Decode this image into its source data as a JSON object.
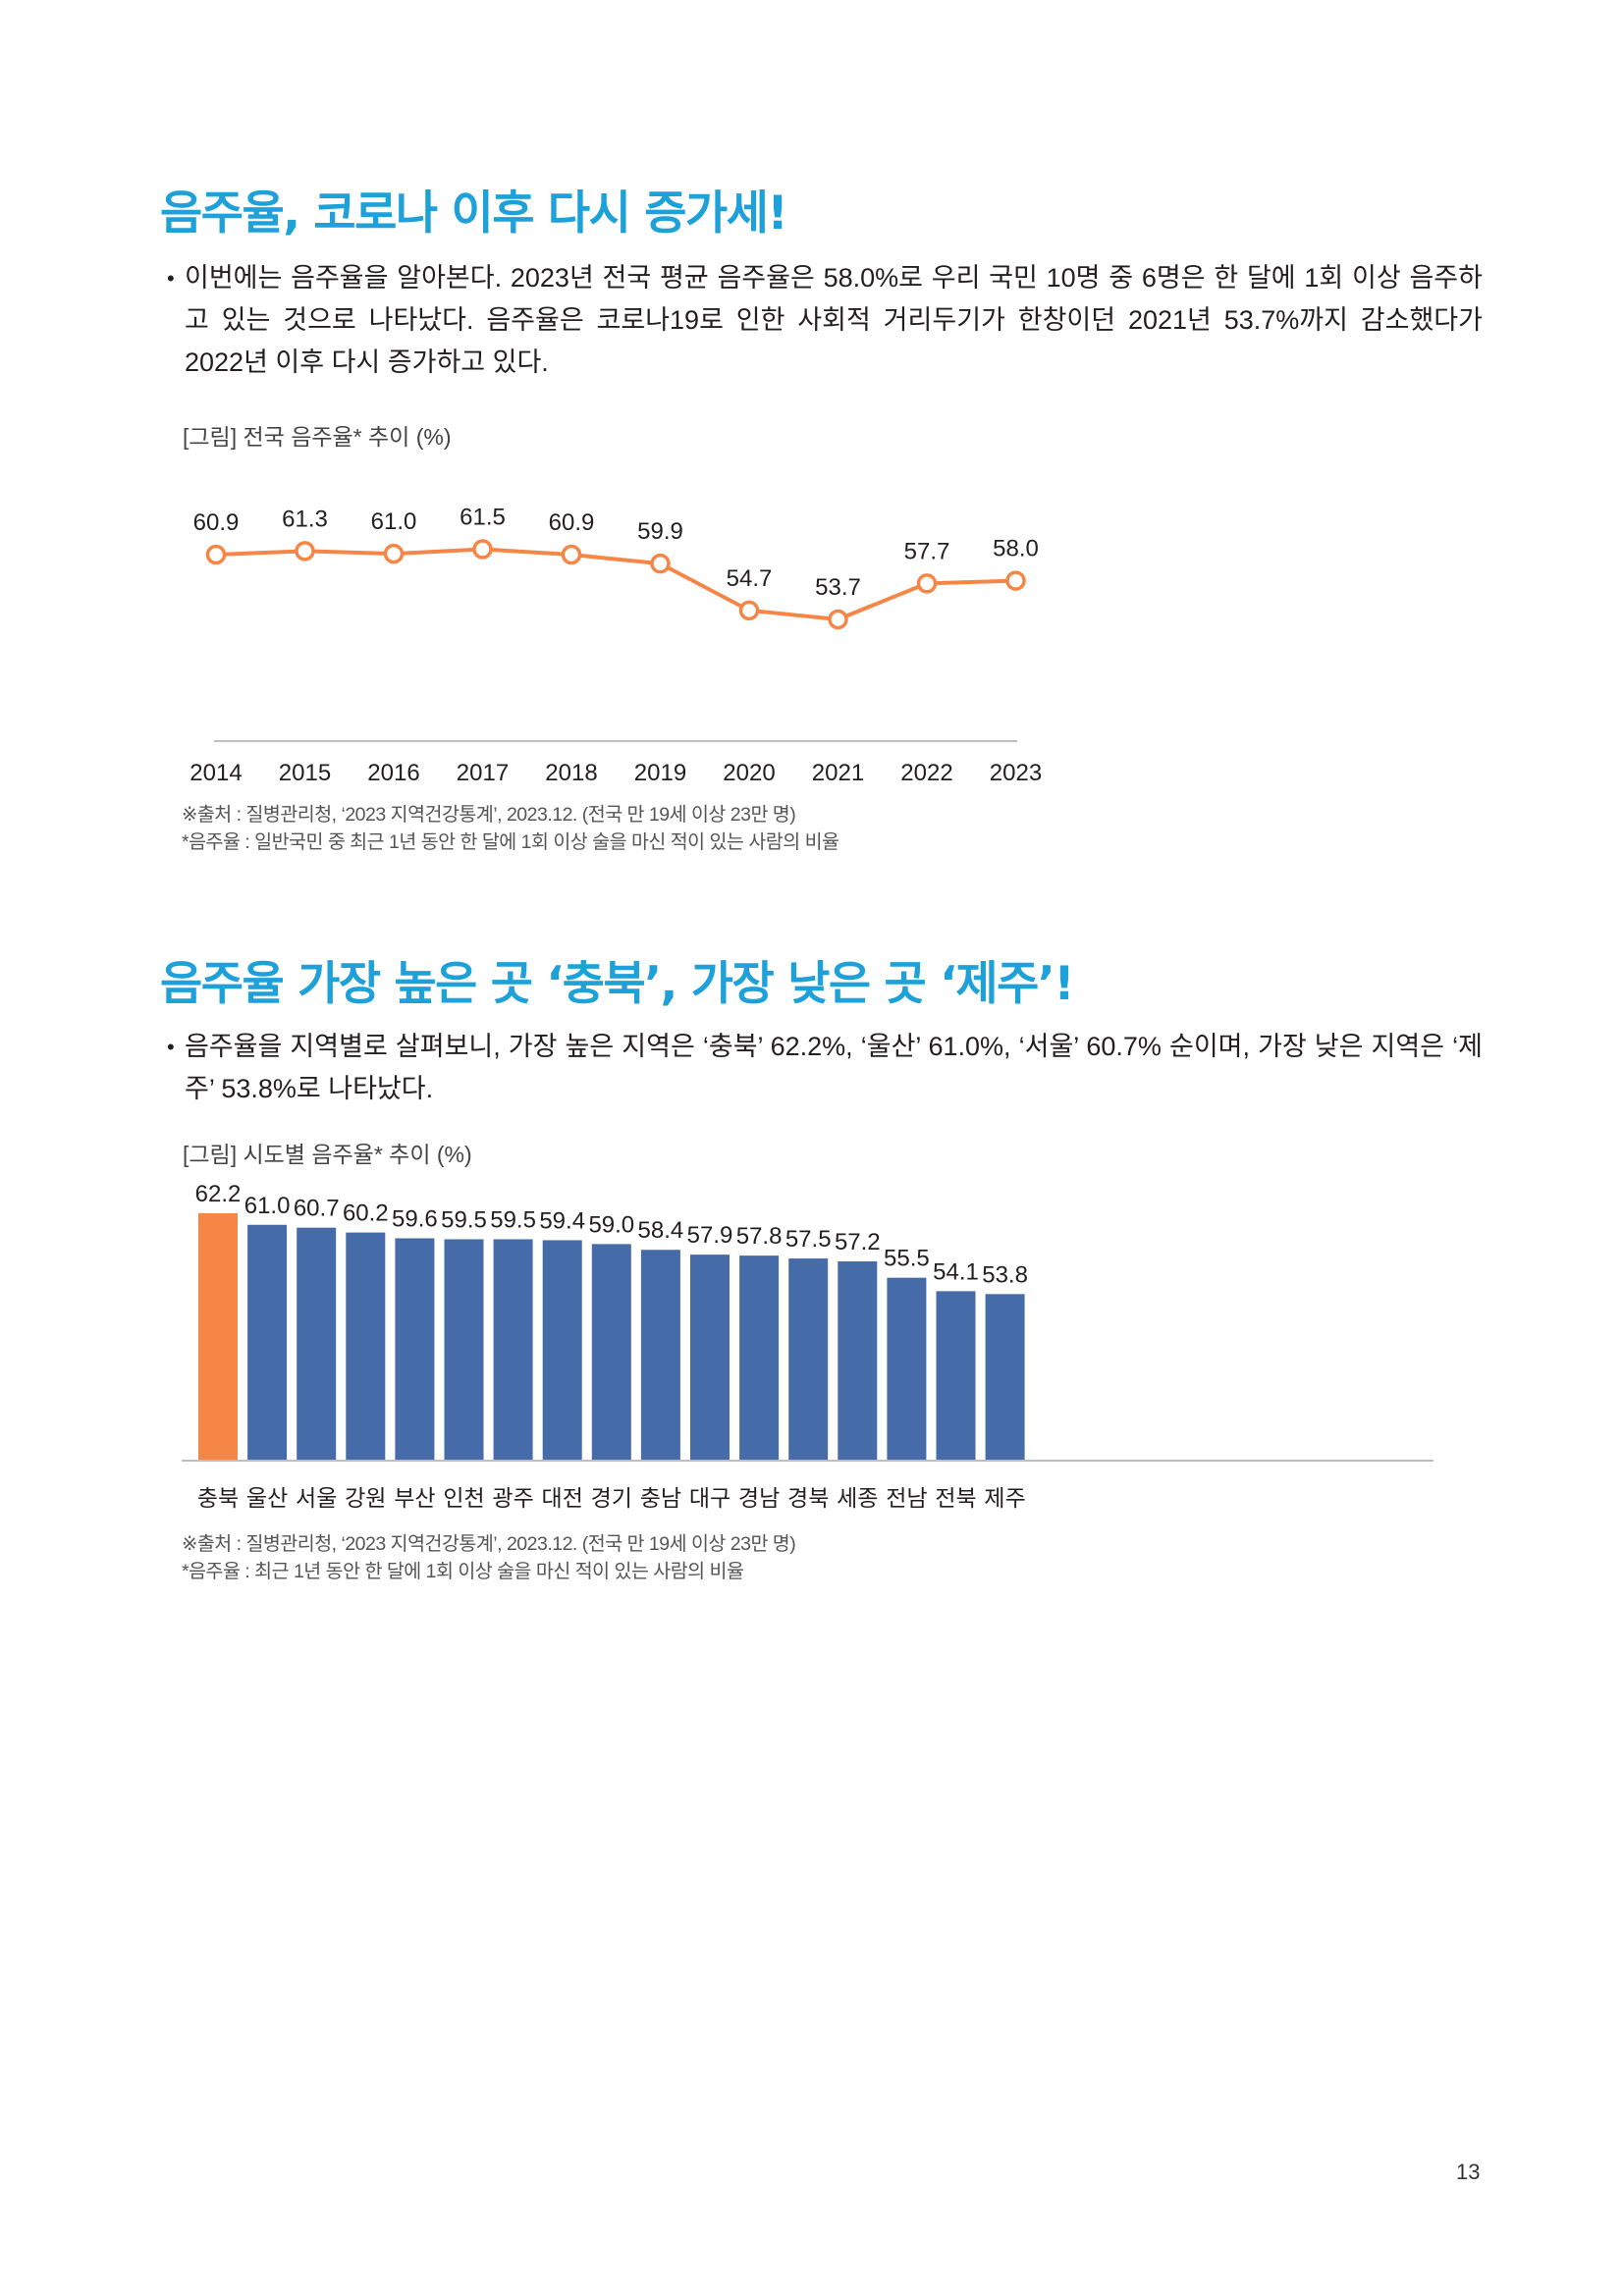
{
  "section1": {
    "heading": "음주율, 코로나 이후 다시 증가세!",
    "bullet": "•",
    "paragraph": "이번에는 음주율을 알아본다. 2023년 전국 평균 음주율은 58.0%로 우리 국민 10명 중 6명은 한 달에 1회 이상 음주하고 있는 것으로 나타났다. 음주율은 코로나19로 인한 사회적 거리두기가 한창이던 2021년 53.7%까지 감소했다가 2022년 이후 다시 증가하고 있다.",
    "figure_caption": "[그림] 전국 음주율* 추이 (%)",
    "source_note": "※출처 : 질병관리청, ‘2023 지역건강통계’, 2023.12. (전국 만 19세 이상 23만 명)",
    "definition_note": "*음주율 : 일반국민 중 최근 1년 동안 한 달에 1회 이상 술을 마신 적이 있는 사람의 비율"
  },
  "section2": {
    "heading": "음주율 가장 높은 곳 ‘충북’, 가장 낮은 곳 ‘제주’!",
    "bullet": "•",
    "paragraph": "음주율을 지역별로 살펴보니, 가장 높은 지역은 ‘충북’ 62.2%, ‘울산’ 61.0%, ‘서울’ 60.7% 순이며, 가장 낮은 지역은 ‘제주’ 53.8%로 나타났다.",
    "figure_caption": "[그림] 시도별 음주율* 추이 (%)",
    "source_note": "※출처 : 질병관리청, ‘2023 지역건강통계’, 2023.12. (전국 만 19세 이상 23만 명)",
    "definition_note": "*음주율 : 최근 1년 동안 한 달에 1회 이상 술을 마신 적이 있는 사람의 비율"
  },
  "page_number": "13",
  "colors": {
    "heading": "#1ea1d9",
    "line": "#f58645",
    "bar_default": "#456ca8",
    "bar_highlight": "#f58645",
    "axis": "#bfbfbf"
  },
  "chart_data": [
    {
      "type": "line",
      "title": "[그림] 전국 음주율* 추이 (%)",
      "xlabel": "",
      "ylabel": "",
      "x": [
        "2014",
        "2015",
        "2016",
        "2017",
        "2018",
        "2019",
        "2020",
        "2021",
        "2022",
        "2023"
      ],
      "series": [
        {
          "name": "음주율",
          "values": [
            60.9,
            61.3,
            61.0,
            61.5,
            60.9,
            59.9,
            54.7,
            53.7,
            57.7,
            58.0
          ]
        }
      ],
      "labels": [
        "60.9",
        "61.3",
        "61.0",
        "61.5",
        "60.9",
        "59.9",
        "54.7",
        "53.7",
        "57.7",
        "58.0"
      ],
      "grid": false,
      "legend": "none"
    },
    {
      "type": "bar",
      "title": "[그림] 시도별 음주율* 추이 (%)",
      "xlabel": "",
      "ylabel": "",
      "categories": [
        "충북",
        "울산",
        "서울",
        "강원",
        "부산",
        "인천",
        "광주",
        "대전",
        "경기",
        "충남",
        "대구",
        "경남",
        "경북",
        "세종",
        "전남",
        "전북",
        "제주"
      ],
      "values": [
        62.2,
        61.0,
        60.7,
        60.2,
        59.6,
        59.5,
        59.5,
        59.4,
        59.0,
        58.4,
        57.9,
        57.8,
        57.5,
        57.2,
        55.5,
        54.1,
        53.8
      ],
      "labels": [
        "62.2",
        "61.0",
        "60.7",
        "60.2",
        "59.6",
        "59.5",
        "59.5",
        "59.4",
        "59.0",
        "58.4",
        "57.9",
        "57.8",
        "57.5",
        "57.2",
        "55.5",
        "54.1",
        "53.8"
      ],
      "highlight": "충북",
      "grid": false,
      "legend": "none"
    }
  ]
}
